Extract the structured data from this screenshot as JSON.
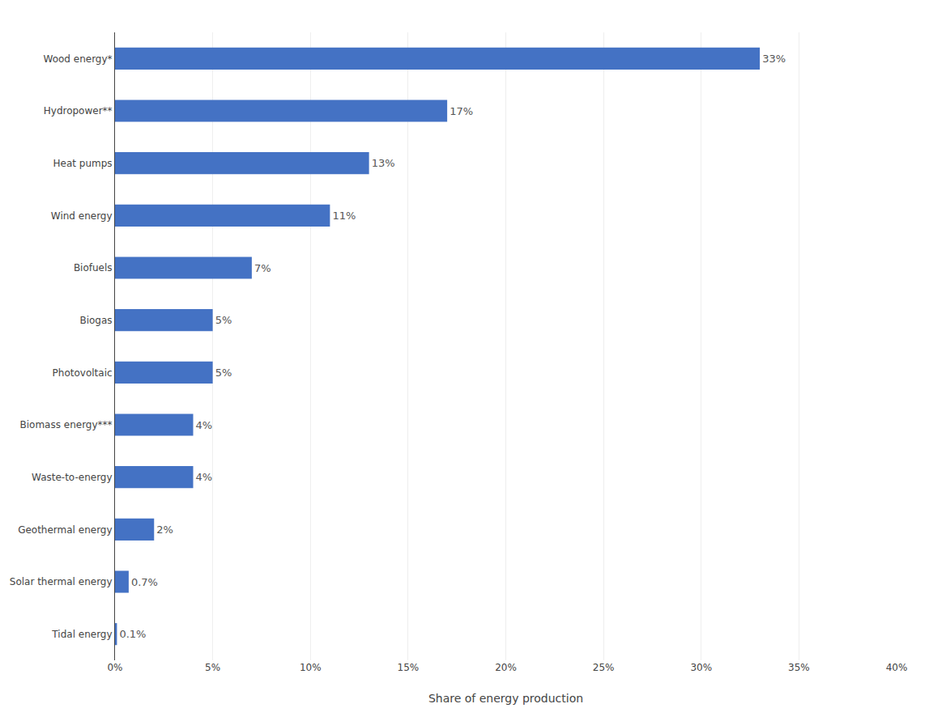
{
  "chart_data": {
    "type": "bar",
    "orientation": "horizontal",
    "categories": [
      "Tidal energy",
      "Solar thermal energy",
      "Geothermal energy",
      "Waste-to-energy",
      "Biomass energy***",
      "Photovoltaic",
      "Biogas",
      "Biofuels",
      "Wind energy",
      "Heat pumps",
      "Hydropower**",
      "Wood energy*"
    ],
    "values": [
      0.1,
      0.7,
      2,
      4,
      4,
      5,
      5,
      7,
      11,
      13,
      17,
      33
    ],
    "value_labels": [
      "0.1%",
      "0.7%",
      "2%",
      "4%",
      "4%",
      "5%",
      "5%",
      "7%",
      "11%",
      "13%",
      "17%",
      "33%"
    ],
    "data_labels": true,
    "color": "#4472c4",
    "xlabel": "Share of energy production",
    "xlim": [
      0,
      40
    ],
    "xticks": [
      {
        "value": 0,
        "label": "0%"
      },
      {
        "value": 5,
        "label": "5%"
      },
      {
        "value": 10,
        "label": "10%"
      },
      {
        "value": 15,
        "label": "15%"
      },
      {
        "value": 20,
        "label": "20%"
      },
      {
        "value": 25,
        "label": "25%"
      },
      {
        "value": 30,
        "label": "30%"
      },
      {
        "value": 35,
        "label": "35%"
      },
      {
        "value": 40,
        "label": "40%"
      }
    ],
    "grid": true
  }
}
